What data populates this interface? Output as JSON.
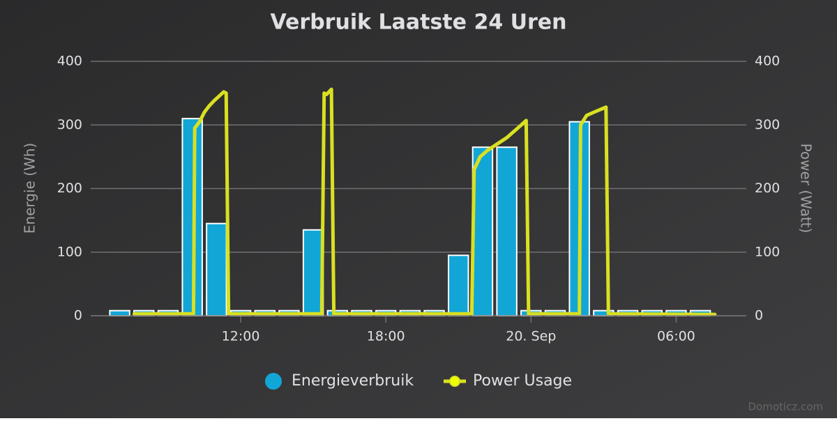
{
  "chart_data": {
    "type": "bar-line",
    "title": "Verbruik Laatste 24 Uren",
    "y_label": "Energie (Wh)",
    "y2_label": "Power (Watt)",
    "credits": "Domoticz.com",
    "xlim": [
      5.8,
      32.9
    ],
    "xticks": [
      {
        "value": 12,
        "label": "12:00"
      },
      {
        "value": 18,
        "label": "18:00"
      },
      {
        "value": 24,
        "label": "20. Sep"
      },
      {
        "value": 30,
        "label": "06:00"
      }
    ],
    "ylim": [
      0,
      400
    ],
    "yticks": [
      0,
      100,
      200,
      300,
      400
    ],
    "y2lim": [
      0,
      400
    ],
    "y2ticks": [
      0,
      100,
      200,
      300,
      400
    ],
    "grid": true,
    "legend": "bottom",
    "series": [
      {
        "name": "Energieverbruik",
        "type": "bar",
        "color": "#12a6d6",
        "x": [
          7,
          8,
          9,
          10,
          11,
          12,
          13,
          14,
          15,
          16,
          17,
          18,
          19,
          20,
          21,
          22,
          23,
          24,
          25,
          26,
          27,
          28,
          29,
          30,
          31
        ],
        "values": [
          8,
          8,
          8,
          310,
          145,
          8,
          8,
          8,
          135,
          8,
          8,
          8,
          8,
          8,
          95,
          265,
          265,
          8,
          8,
          305,
          8,
          8,
          8,
          8,
          8
        ]
      },
      {
        "name": "Power Usage",
        "type": "line",
        "axis": "y2",
        "color": "#d9e021",
        "x": [
          7.6,
          10.05,
          10.1,
          10.3,
          10.5,
          10.7,
          10.9,
          11.1,
          11.3,
          11.4,
          11.5,
          15.35,
          15.45,
          15.55,
          15.75,
          15.85,
          21.55,
          21.65,
          21.9,
          22.2,
          22.6,
          23.0,
          23.3,
          23.6,
          23.8,
          23.9,
          26.0,
          26.05,
          26.3,
          26.6,
          27.1,
          27.2,
          31.6
        ],
        "values": [
          3,
          3,
          295,
          305,
          320,
          330,
          338,
          345,
          352,
          350,
          3,
          3,
          350,
          348,
          356,
          3,
          3,
          230,
          250,
          260,
          270,
          280,
          290,
          300,
          307,
          3,
          3,
          300,
          315,
          320,
          328,
          3,
          2
        ]
      }
    ]
  }
}
